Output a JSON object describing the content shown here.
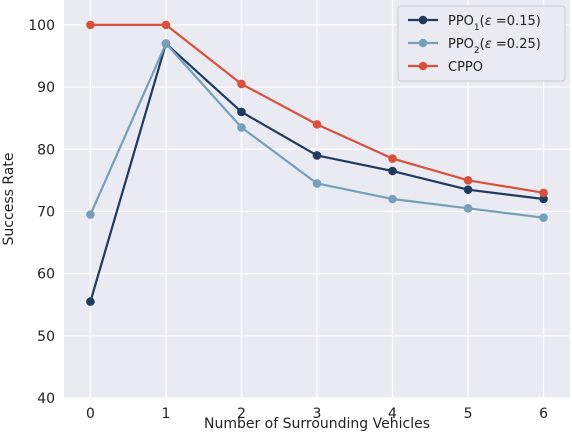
{
  "chart_data": {
    "type": "line",
    "xlabel": "Number of Surrounding Vehicles",
    "ylabel": "Success Rate",
    "x": [
      0,
      1,
      2,
      3,
      4,
      5,
      6
    ],
    "xlim": [
      -0.35,
      6.35
    ],
    "ylim": [
      40,
      104
    ],
    "xticks": [
      0,
      1,
      2,
      3,
      4,
      5,
      6
    ],
    "yticks": [
      40,
      50,
      60,
      70,
      80,
      90,
      100
    ],
    "grid": true,
    "legend_position": "top-right",
    "series": [
      {
        "id": "ppo1",
        "name_main": "PPO",
        "name_sub": "1",
        "name_paren": "(",
        "name_epsilon": "ε",
        "name_rest": " =0.15)",
        "color": "#1f3a5f",
        "values": [
          55.5,
          97,
          86,
          79,
          76.5,
          73.5,
          72
        ]
      },
      {
        "id": "ppo2",
        "name_main": "PPO",
        "name_sub": "2",
        "name_paren": "(",
        "name_epsilon": "ε",
        "name_rest": " =0.25)",
        "color": "#74a0ba",
        "values": [
          69.5,
          97,
          83.5,
          74.5,
          72,
          70.5,
          69
        ]
      },
      {
        "id": "cppo",
        "name_main": "CPPO",
        "name_sub": "",
        "name_paren": "",
        "name_epsilon": "",
        "name_rest": "",
        "color": "#d9513c",
        "values": [
          100,
          100,
          90.5,
          84,
          78.5,
          75,
          73
        ]
      }
    ]
  }
}
